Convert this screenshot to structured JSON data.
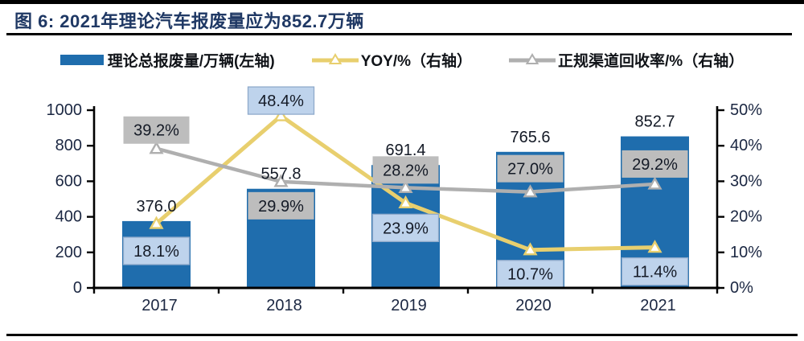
{
  "header": {
    "title": "图 6: 2021年理论汽车报废量应为852.7万辆"
  },
  "legend": [
    {
      "label": "理论总报废量/万辆(左轴)",
      "type": "bar",
      "color": "#1F6DAD"
    },
    {
      "label": "YOY/%（右轴）",
      "type": "line",
      "color": "#E8CF6E"
    },
    {
      "label": "正规渠道回收率/%（右轴）",
      "type": "line",
      "color": "#AFAFAF"
    }
  ],
  "chart_data": {
    "type": "bar+line",
    "title": "2021年理论汽车报废量应为852.7万辆",
    "categories": [
      "2017",
      "2018",
      "2019",
      "2020",
      "2021"
    ],
    "series": [
      {
        "name": "理论总报废量/万辆(左轴)",
        "type": "bar",
        "axis": "left",
        "color": "#1F6DAD",
        "values": [
          376.0,
          557.8,
          691.4,
          765.6,
          852.7
        ],
        "labels": [
          "376.0",
          "557.8",
          "691.4",
          "765.6",
          "852.7"
        ]
      },
      {
        "name": "YOY/%（右轴）",
        "type": "line",
        "axis": "right",
        "color": "#E8CF6E",
        "values": [
          18.1,
          48.4,
          23.9,
          10.7,
          11.4
        ],
        "labels": [
          "18.1%",
          "48.4%",
          "23.9%",
          "10.7%",
          "11.4%"
        ],
        "label_bg": "#BED3EC",
        "label_border": "#8FAACB",
        "label_dy": [
          34,
          -19,
          31,
          30,
          30
        ]
      },
      {
        "name": "正规渠道回收率/%（右轴）",
        "type": "line",
        "axis": "right",
        "color": "#AFAFAF",
        "values": [
          39.2,
          29.9,
          28.2,
          27.0,
          29.2
        ],
        "labels": [
          "39.2%",
          "29.9%",
          "28.2%",
          "27.0%",
          "29.2%"
        ],
        "label_bg": "#BDBDBD",
        "label_border": "",
        "label_dy": [
          -23,
          30,
          -22,
          -29,
          -25
        ]
      }
    ],
    "left_axis": {
      "min": 0,
      "max": 1000,
      "ticks": [
        "0",
        "200",
        "400",
        "600",
        "800",
        "1000"
      ]
    },
    "right_axis": {
      "min": 0,
      "max": 50,
      "ticks": [
        "0%",
        "10%",
        "20%",
        "30%",
        "40%",
        "50%"
      ]
    },
    "grid": false,
    "legend_position": "top",
    "colors": {
      "title": "#1F3864",
      "axis_line": "#000000",
      "tick_label": "#1B2742",
      "data_label": "#141A26"
    }
  }
}
